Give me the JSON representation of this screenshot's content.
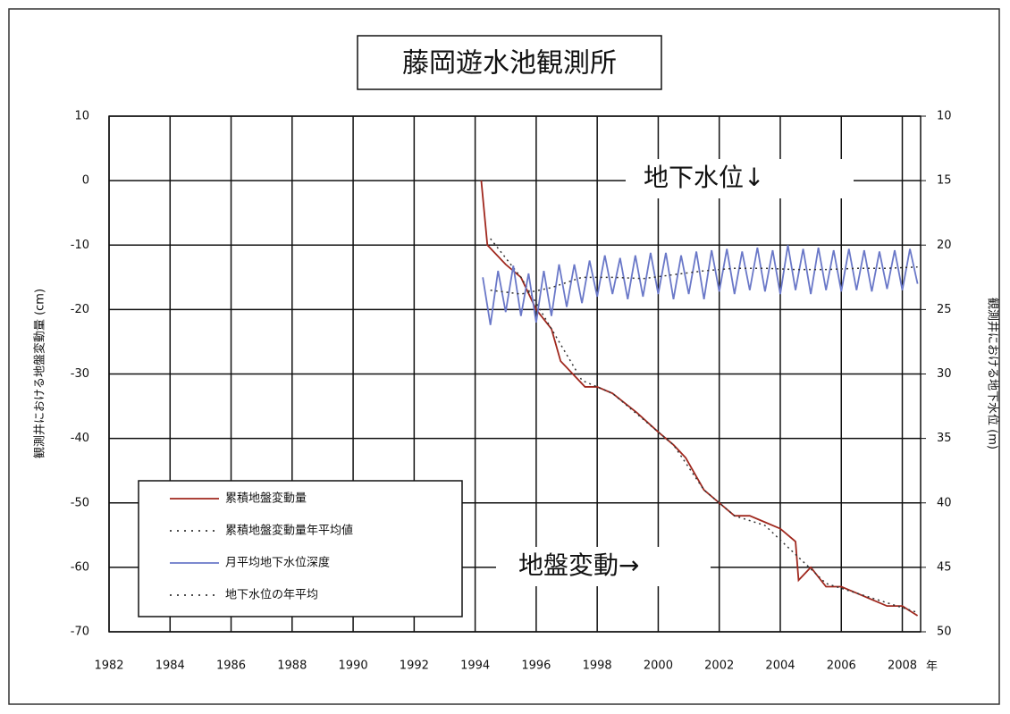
{
  "chart_data": {
    "type": "line",
    "title": "藤岡遊水池観測所",
    "ylabel": "観測井における地盤変動量 (cm)",
    "y2label": "観測井における地下水位 (m)",
    "xlabel": "年",
    "annotations": [
      "地下水位↓",
      "地盤変動→"
    ],
    "xlim": [
      1982,
      2008.6
    ],
    "xticks": [
      1982,
      1984,
      1986,
      1988,
      1990,
      1992,
      1994,
      1996,
      1998,
      2000,
      2002,
      2004,
      2006,
      2008
    ],
    "ylim": [
      -70,
      10
    ],
    "yticks": [
      10,
      0,
      -10,
      -20,
      -30,
      -40,
      -50,
      -60,
      -70
    ],
    "y2lim": [
      10,
      50
    ],
    "y2ticks": [
      10,
      15,
      20,
      25,
      30,
      35,
      40,
      45,
      50
    ],
    "y2_inverted": true,
    "grid": true,
    "legend": "lower-left",
    "series": [
      {
        "name": "累積地盤変動量",
        "color": "#a0281e",
        "style": "solid",
        "x": [
          1994.2,
          1994.4,
          1995,
          1995.5,
          1996,
          1996.5,
          1996.8,
          1997.2,
          1997.6,
          1998,
          1998.5,
          1999.3,
          2000,
          2000.5,
          2000.9,
          2001.5,
          2002,
          2002.5,
          2003,
          2003.5,
          2004,
          2004.5,
          2004.6,
          2005,
          2005.5,
          2006,
          2006.5,
          2007,
          2007.5,
          2008,
          2008.5
        ],
        "values": [
          0,
          -10,
          -13,
          -15,
          -20,
          -23,
          -28,
          -30,
          -32,
          -32,
          -33,
          -36,
          -39,
          -41,
          -43,
          -48,
          -50,
          -52,
          -52,
          -53,
          -54,
          -56,
          -62,
          -60,
          -63,
          -63,
          -64,
          -65,
          -66,
          -66,
          -67.5
        ]
      },
      {
        "name": "累積地盤変動量年平均値",
        "color": "#333333",
        "style": "dotted",
        "x": [
          1994.5,
          1995.5,
          1996.5,
          1997.5,
          1998.5,
          1999.5,
          2000.5,
          2001.5,
          2002.5,
          2003.5,
          2004.5,
          2005.5,
          2006.5,
          2007.5,
          2008.5
        ],
        "values": [
          -9,
          -15,
          -23,
          -31,
          -33,
          -37,
          -41,
          -48,
          -52,
          -53.5,
          -58,
          -62.5,
          -64,
          -65.5,
          -67
        ]
      },
      {
        "name": "月平均地下水位深度",
        "color": "#6a78c8",
        "style": "solid",
        "axis": "y2",
        "x": [
          1994.25,
          1994.5,
          1994.75,
          1995,
          1995.25,
          1995.5,
          1995.75,
          1996,
          1996.25,
          1996.5,
          1996.75,
          1997,
          1997.25,
          1997.5,
          1997.75,
          1998,
          1998.25,
          1998.5,
          1998.75,
          1999,
          1999.25,
          1999.5,
          1999.75,
          2000,
          2000.25,
          2000.5,
          2000.75,
          2001,
          2001.25,
          2001.5,
          2001.75,
          2002,
          2002.25,
          2002.5,
          2002.75,
          2003,
          2003.25,
          2003.5,
          2003.75,
          2004,
          2004.25,
          2004.5,
          2004.75,
          2005,
          2005.25,
          2005.5,
          2005.75,
          2006,
          2006.25,
          2006.5,
          2006.75,
          2007,
          2007.25,
          2007.5,
          2007.75,
          2008,
          2008.25,
          2008.5
        ],
        "values": [
          22.5,
          26.2,
          22,
          25.2,
          21.6,
          25.5,
          22.2,
          26,
          22,
          25.5,
          21.5,
          24.8,
          21.5,
          24.5,
          21.2,
          24,
          20.8,
          23.8,
          21,
          24.2,
          20.8,
          24,
          20.6,
          23.8,
          20.6,
          24.2,
          20.8,
          23.8,
          20.5,
          24.2,
          20.4,
          23.6,
          20.3,
          23.8,
          20.5,
          23.5,
          20.2,
          23.6,
          20.4,
          23.8,
          20,
          23.5,
          20.3,
          23.8,
          20.2,
          23.5,
          20.4,
          23.6,
          20.3,
          23.5,
          20.4,
          23.6,
          20.5,
          23.4,
          20.4,
          23.5,
          20.3,
          23
        ]
      },
      {
        "name": "地下水位の年平均",
        "color": "#333333",
        "style": "dotted",
        "axis": "y2",
        "x": [
          1994.5,
          1995.5,
          1996.5,
          1997.5,
          1998.5,
          1999.5,
          2000.5,
          2001.5,
          2002.5,
          2003.5,
          2004.5,
          2005.5,
          2006.5,
          2007.5,
          2008.5
        ],
        "values": [
          23.5,
          23.8,
          23.3,
          22.5,
          22.5,
          22.6,
          22.3,
          22,
          21.8,
          21.8,
          21.9,
          21.9,
          21.8,
          21.8,
          21.7
        ]
      }
    ]
  }
}
